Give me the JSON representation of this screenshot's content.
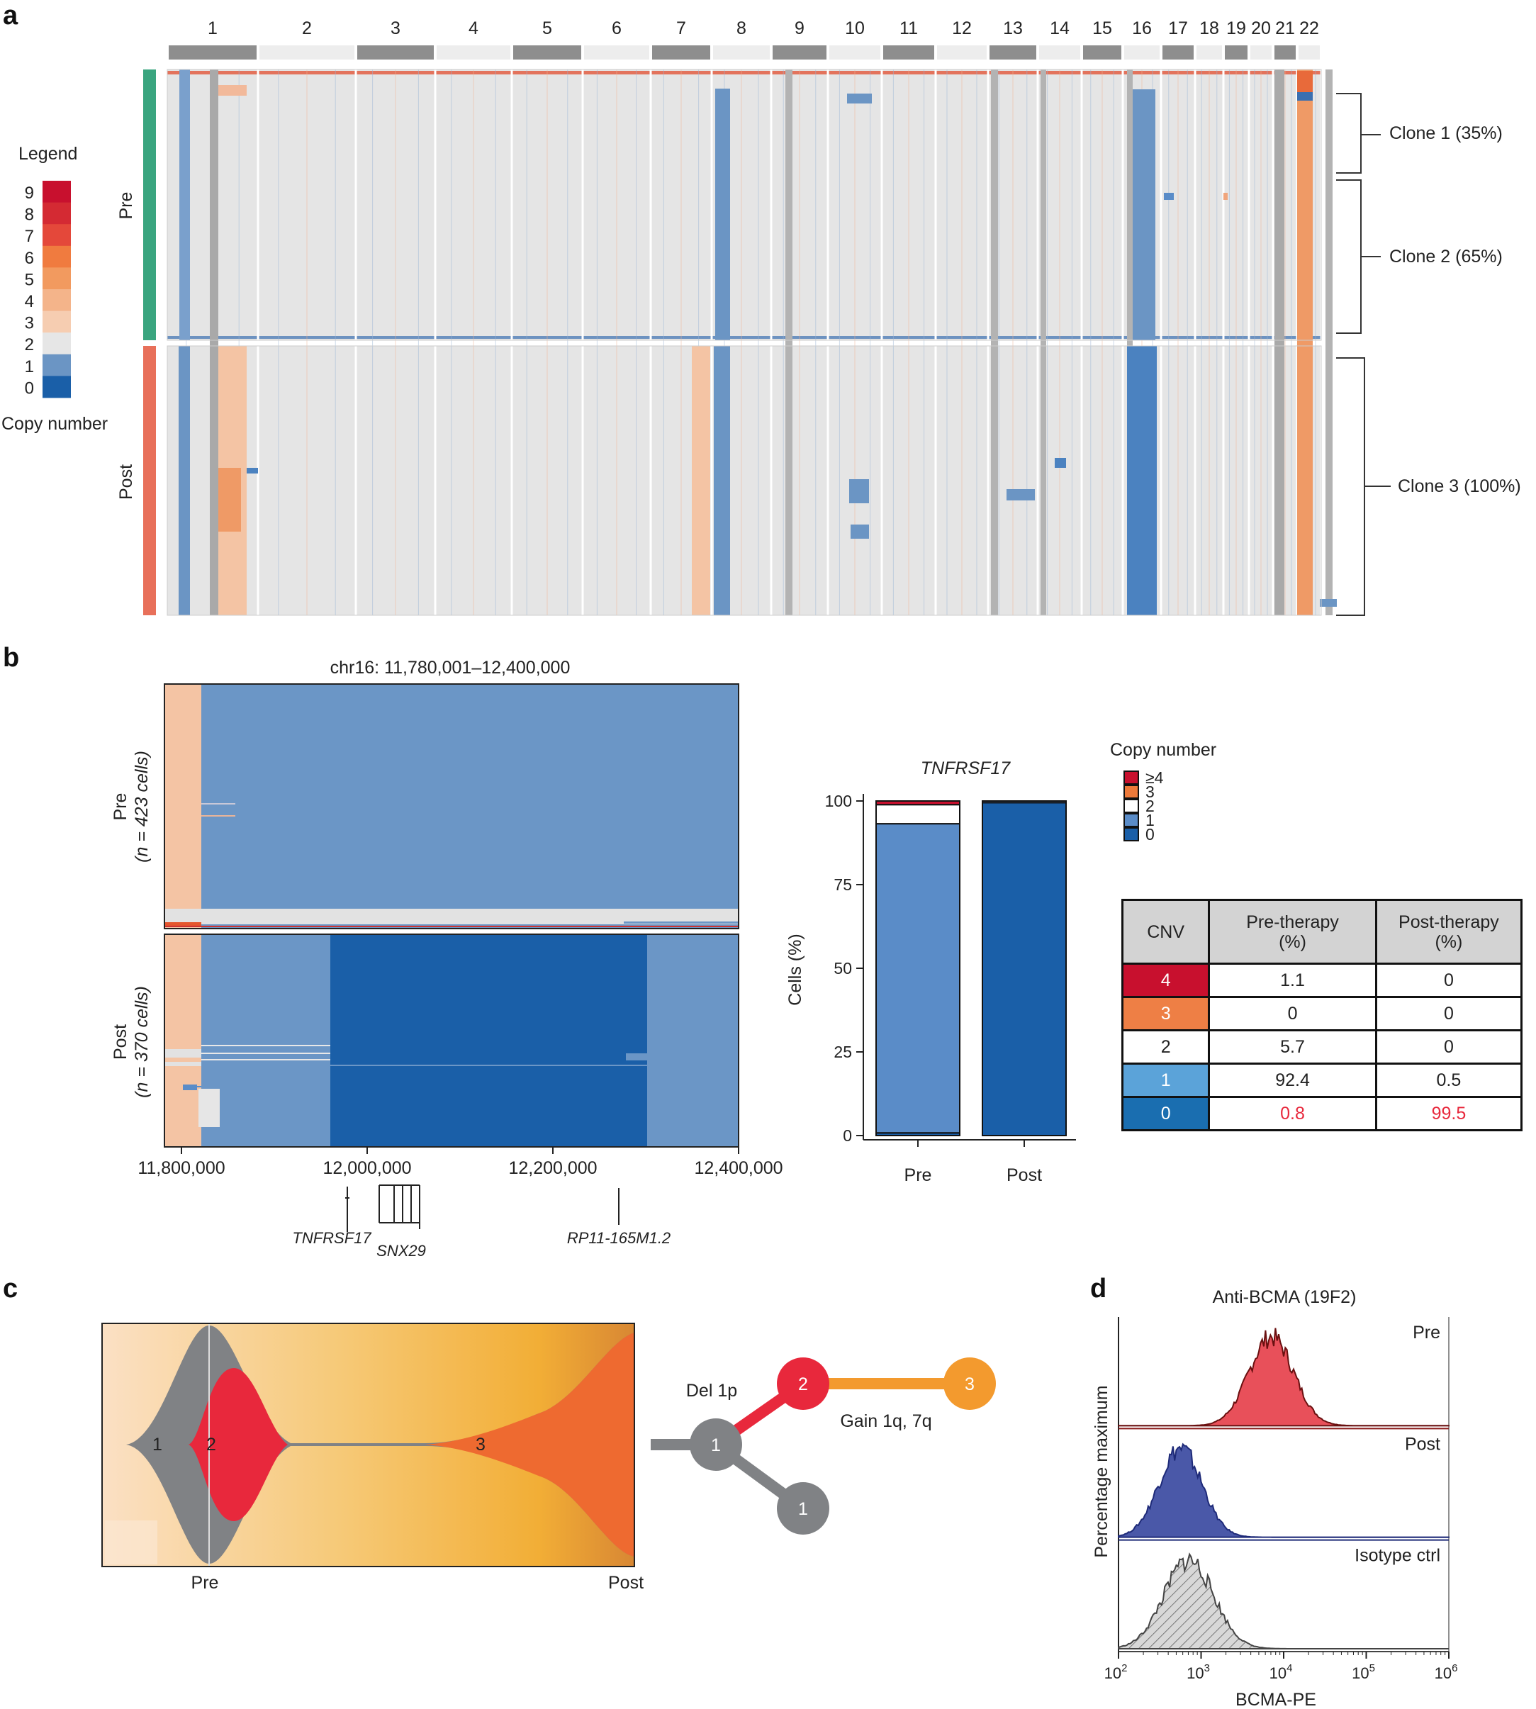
{
  "panel_labels": {
    "a": "a",
    "b": "b",
    "c": "c",
    "d": "d"
  },
  "panel_a": {
    "chromosomes": [
      "1",
      "2",
      "3",
      "4",
      "5",
      "6",
      "7",
      "8",
      "9",
      "10",
      "11",
      "12",
      "13",
      "14",
      "15",
      "16",
      "17",
      "18",
      "19",
      "20",
      "21",
      "22"
    ],
    "legend_title": "Legend",
    "legend_levels": [
      "9",
      "8",
      "7",
      "6",
      "5",
      "4",
      "3",
      "2",
      "1",
      "0"
    ],
    "legend_colors": [
      "#c8102e",
      "#d42a33",
      "#e4483a",
      "#f07b3f",
      "#f29a5f",
      "#f4b48a",
      "#f6cdb1",
      "#e6e6e6",
      "#6b95c4",
      "#1a5fa8"
    ],
    "legend_caption": "Copy number",
    "groups": [
      "Pre",
      "Post"
    ],
    "group_colors": {
      "Pre": "#3aa57f",
      "Post": "#e8705a"
    },
    "clones": [
      "Clone 1 (35%)",
      "Clone 2 (65%)",
      "Clone 3 (100%)"
    ]
  },
  "panel_b": {
    "region_title": "chr16: 11,780,001–12,400,000",
    "pre_label": "Pre",
    "pre_count": "(n = 423 cells)",
    "post_label": "Post",
    "post_count": "(n = 370 cells)",
    "x_ticks": [
      "11,800,000",
      "12,000,000",
      "12,200,000",
      "12,400,000"
    ],
    "genes": [
      "TNFRSF17",
      "SNX29",
      "RP11-165M1.2"
    ],
    "bar_title": "TNFRSF17",
    "bar_ylabel": "Cells (%)",
    "legend_title": "Copy number",
    "legend_items": [
      {
        "label": "≥4",
        "color": "#c8102e"
      },
      {
        "label": "3",
        "color": "#ee7a3a"
      },
      {
        "label": "2",
        "color": "#ffffff"
      },
      {
        "label": "1",
        "color": "#5a8cc8"
      },
      {
        "label": "0",
        "color": "#1a5fa8"
      }
    ],
    "table": {
      "headers": [
        "CNV",
        "Pre-therapy\n(%)",
        "Post-therapy\n(%)"
      ],
      "rows": [
        {
          "cnv": "4",
          "pre": "1.1",
          "post": "0",
          "bg": "#c8102e",
          "fg": "#ffffff"
        },
        {
          "cnv": "3",
          "pre": "0",
          "post": "0",
          "bg": "#ee7f45",
          "fg": "#ffffff"
        },
        {
          "cnv": "2",
          "pre": "5.7",
          "post": "0",
          "bg": "#ffffff",
          "fg": "#222222"
        },
        {
          "cnv": "1",
          "pre": "92.4",
          "post": "0.5",
          "bg": "#5ba3d9",
          "fg": "#ffffff"
        },
        {
          "cnv": "0",
          "pre": "0.8",
          "post": "99.5",
          "bg": "#1a6eb0",
          "fg": "#ffffff"
        }
      ],
      "highlight_color": "#e8283c"
    }
  },
  "panel_c": {
    "clone_labels": [
      "1",
      "2",
      "3"
    ],
    "x_labels": [
      "Pre",
      "Post"
    ],
    "tree_nodes": [
      "1",
      "1",
      "2",
      "3"
    ],
    "tree_edges": [
      "Del 1p",
      "Gain 1q, 7q"
    ],
    "colors": {
      "clone1": "#808285",
      "clone2": "#e8283c",
      "clone3": "#ee6a30",
      "edge3": "#f39a2e"
    }
  },
  "panel_d": {
    "title": "Anti-BCMA (19F2)",
    "ylabel": "Percentage maximum",
    "xlabel": "BCMA-PE",
    "tracks": [
      "Pre",
      "Post",
      "Isotype ctrl"
    ],
    "x_tick_exponents": [
      "2",
      "3",
      "4",
      "5",
      "6"
    ],
    "x_tick_base": "10"
  },
  "chart_data": [
    {
      "type": "bar",
      "title": "TNFRSF17",
      "categories": [
        "Pre",
        "Post"
      ],
      "ylabel": "Cells (%)",
      "ylim": [
        0,
        100
      ],
      "y_ticks": [
        0,
        25,
        50,
        75,
        100
      ],
      "series": [
        {
          "name": "0",
          "values": [
            0.8,
            99.5
          ]
        },
        {
          "name": "1",
          "values": [
            92.4,
            0.5
          ]
        },
        {
          "name": "2",
          "values": [
            5.7,
            0
          ]
        },
        {
          "name": "3",
          "values": [
            0,
            0
          ]
        },
        {
          "name": "≥4",
          "values": [
            1.1,
            0
          ]
        }
      ]
    },
    {
      "type": "area",
      "title": "Anti-BCMA (19F2)",
      "xlabel": "BCMA-PE",
      "ylabel": "Percentage maximum",
      "x_scale": "log10",
      "xlim": [
        100,
        1000000
      ],
      "series": [
        {
          "name": "Pre",
          "peak_log10": 3.85,
          "width_log10": 0.27,
          "color": "#e8505a"
        },
        {
          "name": "Post",
          "peak_log10": 2.75,
          "width_log10": 0.26,
          "color": "#4a58a8"
        },
        {
          "name": "Isotype ctrl",
          "peak_log10": 2.85,
          "width_log10": 0.3,
          "color": "#d8d8d8"
        }
      ]
    }
  ]
}
